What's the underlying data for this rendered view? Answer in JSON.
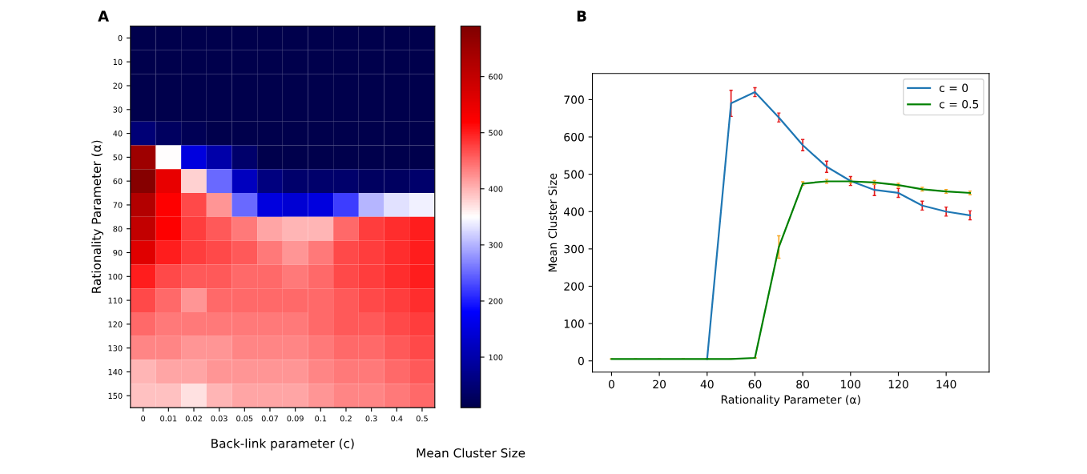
{
  "chart_data": [
    {
      "type": "heatmap",
      "title": "A",
      "xlabel": "Back-link parameter (c)",
      "ylabel": "Rationality Parameter (α)",
      "clabel": "Mean Cluster Size",
      "categories": [
        "0",
        "0.01",
        "0.02",
        "0.03",
        "0.05",
        "0.07",
        "0.09",
        "0.1",
        "0.2",
        "0.3",
        "0.4",
        "0.5"
      ],
      "y_categories": [
        "0",
        "10",
        "20",
        "30",
        "40",
        "50",
        "60",
        "70",
        "80",
        "90",
        "100",
        "110",
        "120",
        "130",
        "140",
        "150"
      ],
      "clim": [
        10,
        690
      ],
      "cticks": [
        100,
        200,
        300,
        400,
        500,
        600
      ],
      "cells": [
        [
          10,
          10,
          10,
          10,
          10,
          10,
          10,
          10,
          10,
          10,
          10,
          10
        ],
        [
          10,
          10,
          10,
          10,
          10,
          10,
          10,
          10,
          10,
          10,
          10,
          10
        ],
        [
          10,
          10,
          10,
          10,
          10,
          10,
          10,
          10,
          10,
          10,
          10,
          10
        ],
        [
          10,
          10,
          10,
          10,
          10,
          10,
          10,
          10,
          10,
          10,
          10,
          10
        ],
        [
          50,
          30,
          20,
          10,
          10,
          10,
          10,
          10,
          10,
          10,
          10,
          10
        ],
        [
          650,
          350,
          150,
          100,
          40,
          10,
          10,
          10,
          10,
          10,
          10,
          10
        ],
        [
          680,
          550,
          380,
          250,
          120,
          60,
          40,
          40,
          40,
          30,
          30,
          40
        ],
        [
          620,
          520,
          470,
          420,
          250,
          150,
          140,
          150,
          220,
          300,
          330,
          340
        ],
        [
          600,
          520,
          480,
          460,
          440,
          410,
          400,
          400,
          450,
          480,
          490,
          500
        ],
        [
          560,
          500,
          480,
          470,
          460,
          440,
          420,
          440,
          470,
          480,
          490,
          500
        ],
        [
          500,
          470,
          460,
          460,
          450,
          450,
          440,
          450,
          470,
          480,
          490,
          500
        ],
        [
          470,
          450,
          420,
          450,
          450,
          450,
          450,
          450,
          460,
          470,
          480,
          490
        ],
        [
          450,
          440,
          440,
          440,
          440,
          440,
          440,
          450,
          460,
          460,
          470,
          480
        ],
        [
          430,
          430,
          420,
          420,
          430,
          430,
          430,
          440,
          450,
          450,
          460,
          470
        ],
        [
          400,
          410,
          410,
          420,
          420,
          420,
          420,
          430,
          440,
          440,
          450,
          460
        ],
        [
          390,
          390,
          370,
          400,
          410,
          410,
          410,
          420,
          430,
          430,
          440,
          450
        ]
      ]
    },
    {
      "type": "line",
      "title": "B",
      "xlabel": "Rationality Parameter (α)",
      "ylabel": "Mean Cluster Size",
      "legend": "top right",
      "x": [
        0,
        10,
        20,
        30,
        40,
        50,
        60,
        70,
        80,
        90,
        100,
        110,
        120,
        130,
        140,
        150
      ],
      "xlim": [
        -8,
        158
      ],
      "xticks": [
        0,
        20,
        40,
        60,
        80,
        100,
        120,
        140
      ],
      "ylim": [
        -30,
        770
      ],
      "yticks": [
        0,
        100,
        200,
        300,
        400,
        500,
        600,
        700
      ],
      "series": [
        {
          "name": "c = 0",
          "color": "#1f77b4",
          "values": [
            null,
            null,
            null,
            null,
            5,
            690,
            720,
            652,
            578,
            520,
            482,
            458,
            450,
            416,
            400,
            390
          ],
          "errors": [
            null,
            null,
            null,
            null,
            null,
            35,
            12,
            12,
            15,
            15,
            12,
            15,
            12,
            12,
            12,
            12
          ]
        },
        {
          "name": "c = 0.5",
          "color": "#008000",
          "values": [
            5,
            5,
            5,
            5,
            5,
            5,
            8,
            305,
            475,
            481,
            481,
            478,
            471,
            460,
            454,
            450
          ],
          "errors": [
            null,
            null,
            null,
            null,
            null,
            null,
            null,
            30,
            5,
            5,
            5,
            5,
            5,
            5,
            5,
            5
          ]
        }
      ]
    }
  ]
}
